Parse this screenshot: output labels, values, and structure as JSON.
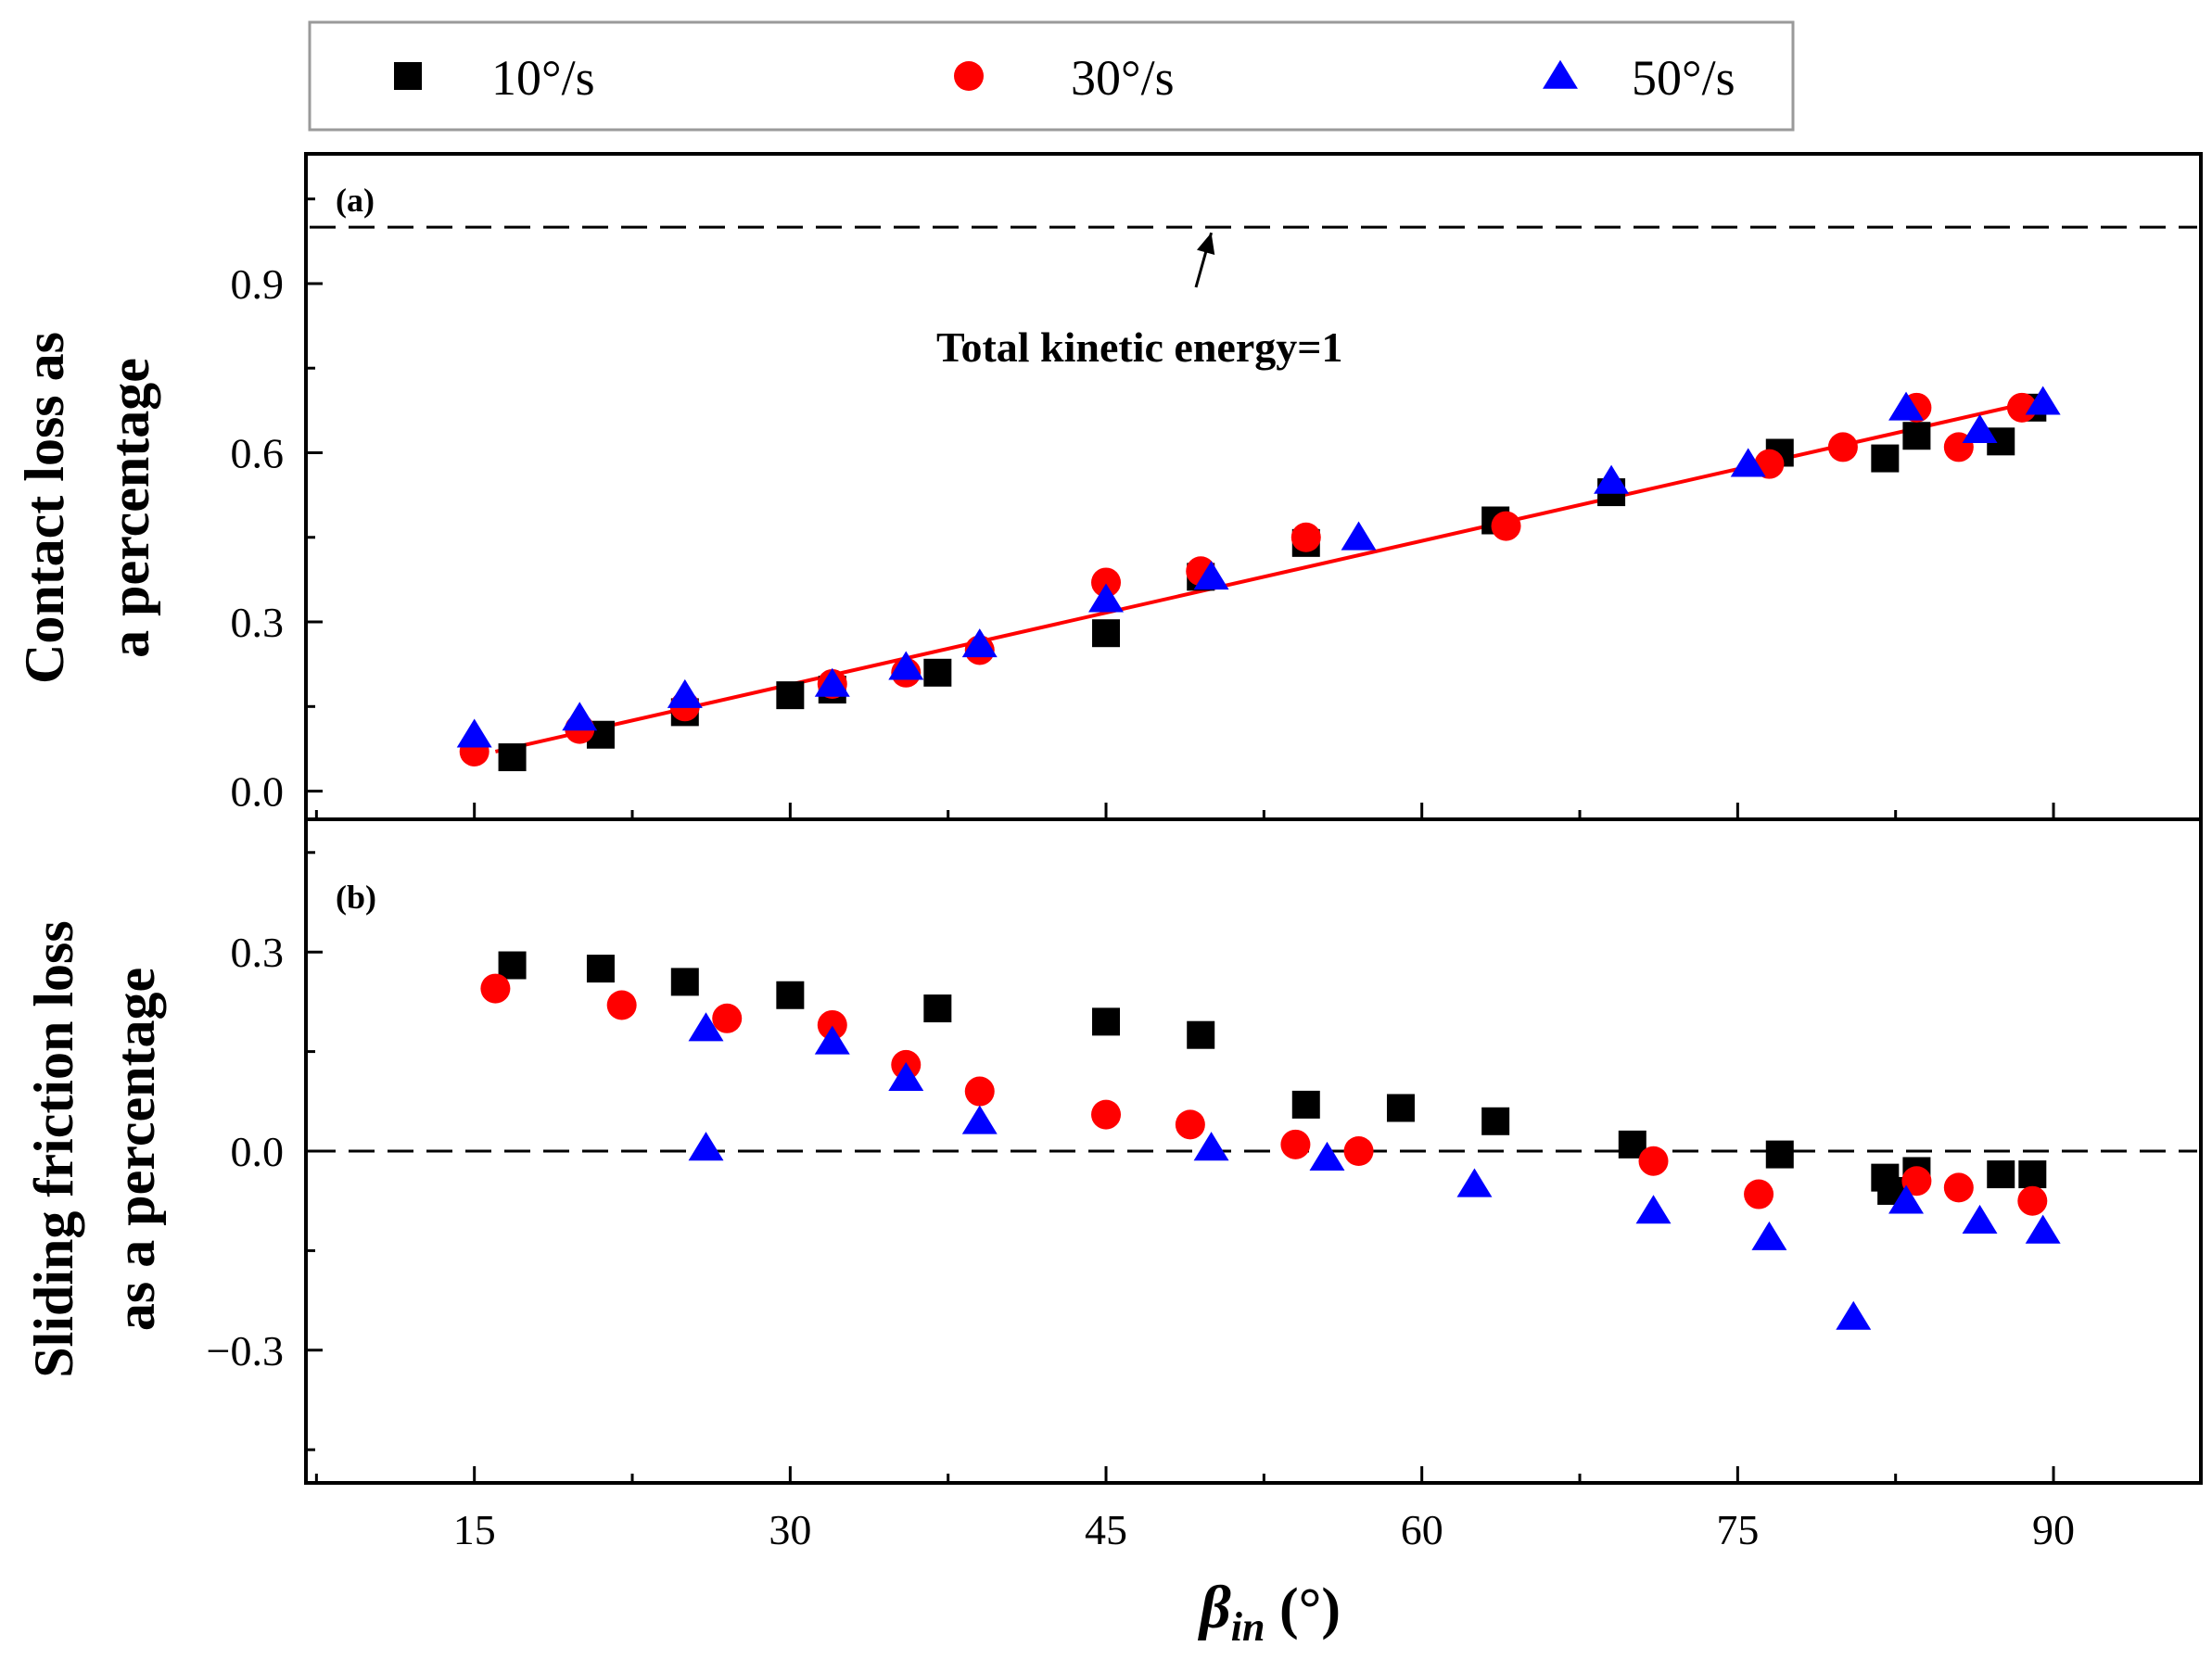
{
  "chart_data": [
    {
      "panel": "a",
      "type": "scatter",
      "panel_label": "(a)",
      "ylabel_lines": [
        "Contact loss as",
        "a percentage"
      ],
      "xlabel": "",
      "ylim": [
        -0.05,
        1.13
      ],
      "y_ticks": [
        0.0,
        0.3,
        0.6,
        0.9
      ],
      "y_tick_labels": [
        "0.0",
        "0.3",
        "0.6",
        "0.9"
      ],
      "annotation": {
        "text": "Total kinetic energy=1",
        "reference_y": 1.0
      },
      "fit_line": {
        "x": [
          16,
          89
        ],
        "y": [
          0.07,
          0.69
        ],
        "color": "#ff0000"
      },
      "series": [
        {
          "name": "10°/s",
          "marker": "square",
          "color": "#000000",
          "points": [
            [
              16.8,
              0.06
            ],
            [
              21,
              0.1
            ],
            [
              25,
              0.14
            ],
            [
              30,
              0.17
            ],
            [
              32,
              0.18
            ],
            [
              37,
              0.21
            ],
            [
              45,
              0.28
            ],
            [
              49.5,
              0.38
            ],
            [
              54.5,
              0.44
            ],
            [
              63.5,
              0.48
            ],
            [
              69,
              0.53
            ],
            [
              77,
              0.6
            ],
            [
              82,
              0.59
            ],
            [
              83.5,
              0.63
            ],
            [
              87.5,
              0.62
            ],
            [
              89,
              0.68
            ]
          ]
        },
        {
          "name": "30°/s",
          "marker": "circle",
          "color": "#ff0000",
          "points": [
            [
              15,
              0.07
            ],
            [
              20,
              0.11
            ],
            [
              25,
              0.15
            ],
            [
              32,
              0.19
            ],
            [
              35.5,
              0.21
            ],
            [
              39,
              0.25
            ],
            [
              45,
              0.37
            ],
            [
              49.5,
              0.39
            ],
            [
              54.5,
              0.45
            ],
            [
              64,
              0.47
            ],
            [
              76.5,
              0.58
            ],
            [
              80,
              0.61
            ],
            [
              83.5,
              0.68
            ],
            [
              85.5,
              0.61
            ],
            [
              88.5,
              0.68
            ]
          ]
        },
        {
          "name": "50°/s",
          "marker": "triangle",
          "color": "#0000ff",
          "points": [
            [
              15,
              0.1
            ],
            [
              20,
              0.13
            ],
            [
              25,
              0.17
            ],
            [
              32,
              0.19
            ],
            [
              35.5,
              0.22
            ],
            [
              39,
              0.26
            ],
            [
              45,
              0.34
            ],
            [
              50,
              0.38
            ],
            [
              57,
              0.45
            ],
            [
              69,
              0.55
            ],
            [
              75.5,
              0.58
            ],
            [
              83,
              0.68
            ],
            [
              86.5,
              0.64
            ],
            [
              89.5,
              0.69
            ]
          ]
        }
      ]
    },
    {
      "panel": "b",
      "type": "scatter",
      "panel_label": "(b)",
      "ylabel_lines": [
        "Sliding friction loss",
        "as a percentage"
      ],
      "xlabel": "β_in (°)",
      "xlabel_main": "β",
      "xlabel_sub": "in",
      "xlabel_unit": " (°)",
      "xlim": [
        7,
        97
      ],
      "x_ticks": [
        15,
        30,
        45,
        60,
        75,
        90
      ],
      "x_tick_labels": [
        "15",
        "30",
        "45",
        "60",
        "75",
        "90"
      ],
      "ylim": [
        -0.5,
        0.5
      ],
      "y_ticks": [
        -0.3,
        0.0,
        0.3
      ],
      "y_tick_labels": [
        "−0.3",
        "0.0",
        "0.3"
      ],
      "reference_y": 0.0,
      "series": [
        {
          "name": "10°/s",
          "marker": "square",
          "color": "#000000",
          "points": [
            [
              16.8,
              0.28
            ],
            [
              21,
              0.275
            ],
            [
              25,
              0.255
            ],
            [
              30,
              0.235
            ],
            [
              37,
              0.215
            ],
            [
              45,
              0.195
            ],
            [
              49.5,
              0.175
            ],
            [
              54.5,
              0.07
            ],
            [
              59,
              0.065
            ],
            [
              63.5,
              0.045
            ],
            [
              70,
              0.01
            ],
            [
              77,
              -0.005
            ],
            [
              82,
              -0.04
            ],
            [
              82.3,
              -0.06
            ],
            [
              83.5,
              -0.03
            ],
            [
              87.5,
              -0.035
            ],
            [
              89,
              -0.035
            ]
          ]
        },
        {
          "name": "30°/s",
          "marker": "circle",
          "color": "#ff0000",
          "points": [
            [
              16,
              0.245
            ],
            [
              22,
              0.22
            ],
            [
              27,
              0.2
            ],
            [
              32,
              0.19
            ],
            [
              35.5,
              0.13
            ],
            [
              39,
              0.09
            ],
            [
              45,
              0.055
            ],
            [
              49,
              0.04
            ],
            [
              54,
              0.01
            ],
            [
              57,
              0.0
            ],
            [
              71,
              -0.015
            ],
            [
              76,
              -0.065
            ],
            [
              83.5,
              -0.045
            ],
            [
              85.5,
              -0.055
            ],
            [
              89,
              -0.075
            ]
          ]
        },
        {
          "name": "50°/s",
          "marker": "triangle",
          "color": "#0000ff",
          "points": [
            [
              26,
              0.185
            ],
            [
              26,
              0.005
            ],
            [
              32,
              0.165
            ],
            [
              35.5,
              0.11
            ],
            [
              39,
              0.045
            ],
            [
              50,
              0.005
            ],
            [
              55.5,
              -0.01
            ],
            [
              62.5,
              -0.05
            ],
            [
              71,
              -0.09
            ],
            [
              76.5,
              -0.13
            ],
            [
              80.5,
              -0.25
            ],
            [
              83,
              -0.075
            ],
            [
              86.5,
              -0.105
            ],
            [
              89.5,
              -0.12
            ]
          ]
        }
      ]
    }
  ]
}
